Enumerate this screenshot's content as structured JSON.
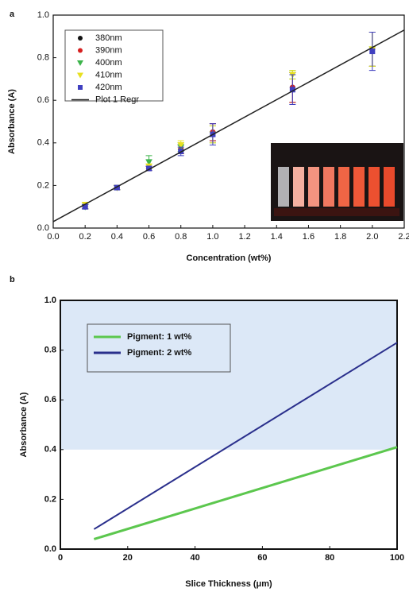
{
  "chart_data": [
    {
      "type": "scatter",
      "panel_label": "a",
      "x_label": "Concentration (wt%)",
      "y_label": "Absorbance (A)",
      "xlim": [
        0,
        2.2
      ],
      "ylim": [
        0,
        1.0
      ],
      "xticks": [
        {
          "value": 0,
          "label": "0.0"
        },
        {
          "value": 0.2,
          "label": "0.2"
        },
        {
          "value": 0.4,
          "label": "0.4"
        },
        {
          "value": 0.6,
          "label": "0.6"
        },
        {
          "value": 0.8,
          "label": "0.8"
        },
        {
          "value": 1.0,
          "label": "1.0"
        },
        {
          "value": 1.2,
          "label": "1.2"
        },
        {
          "value": 1.4,
          "label": "1.4"
        },
        {
          "value": 1.6,
          "label": "1.6"
        },
        {
          "value": 1.8,
          "label": "1.8"
        },
        {
          "value": 2.0,
          "label": "2.0"
        },
        {
          "value": 2.2,
          "label": "2.2"
        }
      ],
      "yticks": [
        {
          "value": 0,
          "label": "0.0"
        },
        {
          "value": 0.2,
          "label": "0.2"
        },
        {
          "value": 0.4,
          "label": "0.4"
        },
        {
          "value": 0.6,
          "label": "0.6"
        },
        {
          "value": 0.8,
          "label": "0.8"
        },
        {
          "value": 1.0,
          "label": "1.0"
        }
      ],
      "legend": "upper-left",
      "x": [
        0.2,
        0.4,
        0.6,
        0.8,
        1.0,
        1.5,
        2.0
      ],
      "series": [
        {
          "name": "380nm",
          "color": "#111111",
          "marker": "circle",
          "values": [
            0.1,
            0.19,
            0.28,
            0.37,
            0.45,
            0.66,
            0.84
          ],
          "errors": [
            0.01,
            0.01,
            0.01,
            0.02,
            0.04,
            0.07,
            0.08
          ]
        },
        {
          "name": "390nm",
          "color": "#d62020",
          "marker": "circle",
          "values": [
            0.1,
            0.19,
            0.28,
            0.37,
            0.45,
            0.66,
            0.84
          ],
          "errors": [
            0.01,
            0.01,
            0.01,
            0.02,
            0.04,
            0.07,
            0.08
          ]
        },
        {
          "name": "400nm",
          "color": "#3cb44b",
          "marker": "triangle-down",
          "values": [
            0.1,
            0.19,
            0.31,
            0.38,
            0.44,
            0.72,
            0.84
          ],
          "errors": [
            0.01,
            0.01,
            0.03,
            0.02,
            0.04,
            0.02,
            0.08
          ]
        },
        {
          "name": "410nm",
          "color": "#e8e020",
          "marker": "triangle-down",
          "values": [
            0.11,
            0.19,
            0.29,
            0.39,
            0.44,
            0.72,
            0.84
          ],
          "errors": [
            0.01,
            0.01,
            0.01,
            0.02,
            0.04,
            0.02,
            0.08
          ]
        },
        {
          "name": "420nm",
          "color": "#4040c0",
          "marker": "square",
          "values": [
            0.1,
            0.19,
            0.28,
            0.36,
            0.44,
            0.65,
            0.83
          ],
          "errors": [
            0.01,
            0.01,
            0.01,
            0.02,
            0.05,
            0.07,
            0.09
          ]
        },
        {
          "name": "Plot 1 Regr",
          "color": "#222222",
          "marker": "line",
          "x": [
            0,
            2.2
          ],
          "values": [
            0.03,
            0.93
          ]
        }
      ]
    },
    {
      "type": "line",
      "panel_label": "b",
      "x_label": "Slice Thickness (μm)",
      "y_label": "Absorbance (A)",
      "xlim": [
        0,
        100
      ],
      "ylim": [
        0,
        1.0
      ],
      "xticks": [
        0,
        20,
        40,
        60,
        80,
        100
      ],
      "yticks": [
        {
          "value": 0,
          "label": "0.0"
        },
        {
          "value": 0.2,
          "label": "0.2"
        },
        {
          "value": 0.4,
          "label": "0.4"
        },
        {
          "value": 0.6,
          "label": "0.6"
        },
        {
          "value": 0.8,
          "label": "0.8"
        },
        {
          "value": 1.0,
          "label": "1.0"
        }
      ],
      "legend": "upper-left",
      "shade": {
        "ylim": [
          0.4,
          1.0
        ],
        "color": "#dce8f7"
      },
      "series": [
        {
          "name": "Pigment: 1 wt%",
          "color": "#5cc74e",
          "marker": "line",
          "x": [
            10,
            100
          ],
          "values": [
            0.04,
            0.41
          ]
        },
        {
          "name": "Pigment: 2 wt%",
          "color": "#2a2f8c",
          "marker": "line",
          "x": [
            10,
            100
          ],
          "values": [
            0.08,
            0.83
          ]
        }
      ]
    }
  ]
}
